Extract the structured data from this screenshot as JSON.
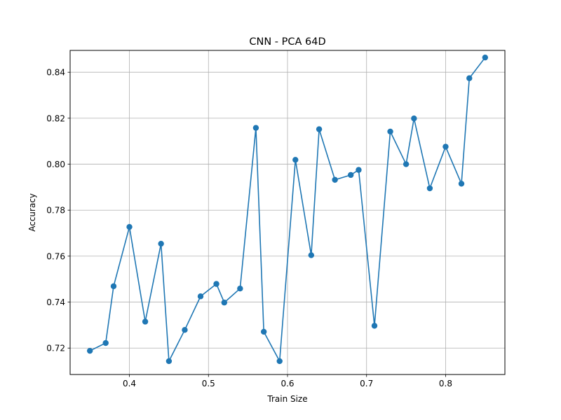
{
  "chart_data": {
    "type": "line",
    "title": "CNN - PCA 64D",
    "xlabel": "Train Size",
    "ylabel": "Accuracy",
    "xlim": [
      0.325,
      0.875
    ],
    "ylim": [
      0.7085,
      0.8495
    ],
    "grid": true,
    "x_ticks": [
      0.4,
      0.5,
      0.6,
      0.7,
      0.8
    ],
    "x_tick_labels": [
      "0.4",
      "0.5",
      "0.6",
      "0.7",
      "0.8"
    ],
    "y_ticks": [
      0.72,
      0.74,
      0.76,
      0.78,
      0.8,
      0.82,
      0.84
    ],
    "y_tick_labels": [
      "0.72",
      "0.74",
      "0.76",
      "0.78",
      "0.80",
      "0.82",
      "0.84"
    ],
    "series": [
      {
        "name": "Accuracy",
        "color": "#1f77b4",
        "marker": "circle",
        "x": [
          0.35,
          0.37,
          0.38,
          0.4,
          0.42,
          0.44,
          0.45,
          0.47,
          0.49,
          0.51,
          0.52,
          0.54,
          0.56,
          0.57,
          0.59,
          0.61,
          0.63,
          0.64,
          0.66,
          0.68,
          0.69,
          0.71,
          0.73,
          0.75,
          0.76,
          0.78,
          0.8,
          0.82,
          0.83,
          0.85
        ],
        "y": [
          0.7188,
          0.7222,
          0.7469,
          0.7727,
          0.7315,
          0.7654,
          0.7143,
          0.7279,
          0.7425,
          0.7479,
          0.7398,
          0.7459,
          0.8158,
          0.7271,
          0.7143,
          0.8019,
          0.7604,
          0.8152,
          0.7932,
          0.7953,
          0.7975,
          0.7297,
          0.8142,
          0.8,
          0.8199,
          0.7895,
          0.8076,
          0.7915,
          0.8374,
          0.8464
        ]
      }
    ]
  }
}
